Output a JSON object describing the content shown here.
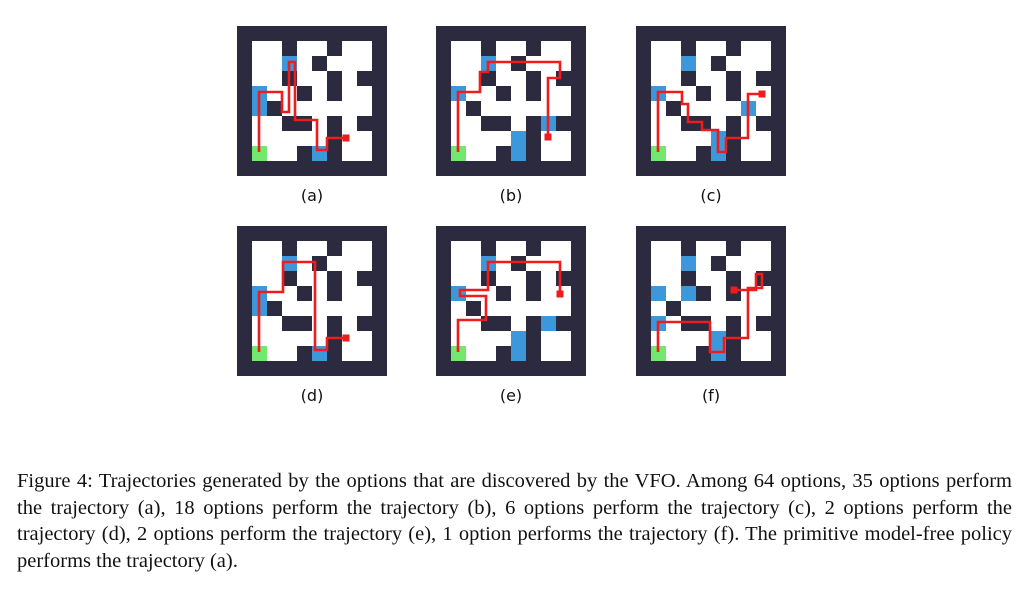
{
  "figure": {
    "panels": [
      {
        "id": "a",
        "label": "(a)"
      },
      {
        "id": "b",
        "label": "(b)"
      },
      {
        "id": "c",
        "label": "(c)"
      },
      {
        "id": "d",
        "label": "(d)"
      },
      {
        "id": "e",
        "label": "(e)"
      },
      {
        "id": "f",
        "label": "(f)"
      }
    ],
    "colors": {
      "wall": "#2b2a3f",
      "floor": "#ffffff",
      "option_state": "#3d98db",
      "start": "#73e86e",
      "trajectory": "#ee1c1c"
    },
    "caption": "Figure 4: Trajectories generated by the options that are discovered by the VFO. Among 64 options, 35 options perform the trajectory (a), 18 options perform the trajectory (b), 6 options perform the trajectory (c), 2 options perform the trajectory (d), 2 options perform the trajectory (e), 1 option performs the trajectory (f). The primitive model-free policy performs the trajectory (a)."
  }
}
